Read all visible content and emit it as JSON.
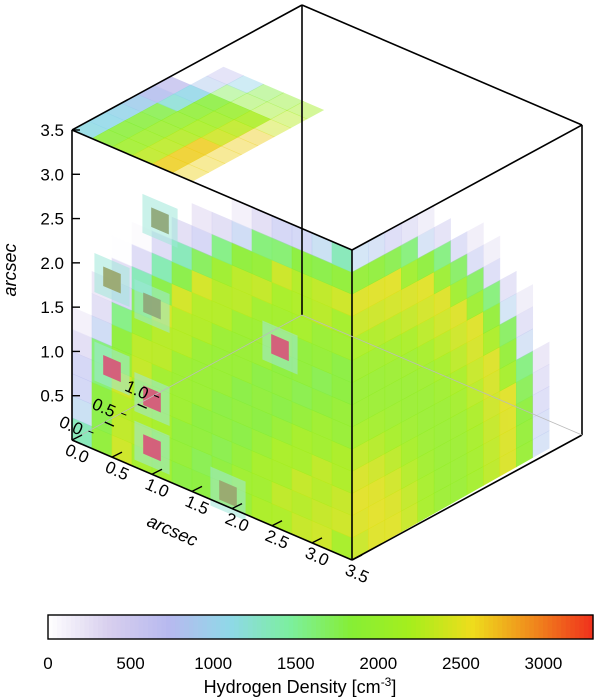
{
  "chart_data": {
    "type": "heatmap",
    "title": "",
    "colorbar": {
      "label": "Hydrogen Density [cm",
      "label_exponent": "-3",
      "label_close": "]",
      "min": 0,
      "max": 3300,
      "ticks": [
        "0",
        "500",
        "1000",
        "1500",
        "2000",
        "2500",
        "3000"
      ],
      "tick_values": [
        0,
        500,
        1000,
        1500,
        2000,
        2500,
        3000
      ],
      "colors": [
        "#ffffff",
        "#d8cfee",
        "#b7b9ef",
        "#8fd8e8",
        "#7cef9e",
        "#86ee36",
        "#a6ee1c",
        "#eedd1c",
        "#f08a1c",
        "#f0301c"
      ]
    },
    "axes": {
      "x_label": "arcsec",
      "z_label": "arcsec",
      "x_ticks": [
        "0.0",
        "0.5",
        "1.0",
        "1.5",
        "2.0",
        "2.5",
        "3.0",
        "3.5"
      ],
      "z_ticks": [
        "0.5",
        "1.0",
        "1.5",
        "2.0",
        "2.5",
        "3.0",
        "3.5"
      ],
      "y_ticks": [
        "0.0",
        "0.5",
        "1.0"
      ],
      "x_range": [
        0,
        3.5
      ],
      "y_range": [
        0,
        3.5
      ],
      "z_range": [
        0,
        3.5
      ]
    },
    "density_spots_front_face": [
      {
        "x": 0.5,
        "z": 1.0,
        "value": 3100
      },
      {
        "x": 1.0,
        "z": 0.85,
        "value": 3000
      },
      {
        "x": 0.5,
        "z": 2.0,
        "value": 2700
      },
      {
        "x": 1.0,
        "z": 1.9,
        "value": 2600
      },
      {
        "x": 1.1,
        "z": 2.9,
        "value": 2600
      },
      {
        "x": 1.0,
        "z": 0.3,
        "value": 3100
      },
      {
        "x": 1.95,
        "z": 0.15,
        "value": 2700
      },
      {
        "x": 2.6,
        "z": 2.05,
        "value": 3000
      }
    ]
  }
}
